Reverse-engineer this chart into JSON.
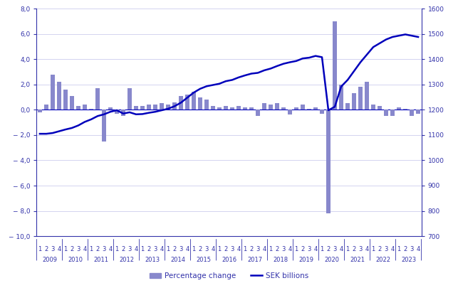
{
  "bar_color": "#8888cc",
  "line_color": "#0000bb",
  "grid_color": "#ccccee",
  "axis_color": "#3333aa",
  "background_color": "#ffffff",
  "left_ylim": [
    -10,
    8
  ],
  "right_ylim": [
    700,
    1600
  ],
  "left_yticks": [
    -10,
    -8,
    -6,
    -4,
    -2,
    0,
    2,
    4,
    6,
    8
  ],
  "right_yticks": [
    700,
    800,
    900,
    1000,
    1100,
    1200,
    1300,
    1400,
    1500,
    1600
  ],
  "years": [
    2009,
    2010,
    2011,
    2012,
    2013,
    2014,
    2015,
    2016,
    2017,
    2018,
    2019,
    2020,
    2021,
    2022,
    2023
  ],
  "pct_change": [
    -0.2,
    0.4,
    2.8,
    2.2,
    1.6,
    1.1,
    0.3,
    0.4,
    0.1,
    1.7,
    -2.5,
    0.2,
    -0.3,
    -0.5,
    1.7,
    0.3,
    0.3,
    0.4,
    0.4,
    0.5,
    0.4,
    0.6,
    1.1,
    1.2,
    1.4,
    1.0,
    0.8,
    0.3,
    0.2,
    0.3,
    0.2,
    0.3,
    0.2,
    0.2,
    -0.5,
    0.5,
    0.4,
    0.5,
    0.2,
    -0.4,
    0.2,
    0.4,
    0.1,
    0.2,
    -0.3,
    -8.2,
    7.0,
    2.0,
    0.5,
    1.3,
    1.8,
    2.2,
    0.4,
    0.3,
    -0.5,
    -0.5,
    0.2,
    0.1,
    -0.5,
    -0.3
  ],
  "sek_levels": [
    1105,
    1105,
    1108,
    1115,
    1122,
    1128,
    1138,
    1152,
    1162,
    1175,
    1182,
    1192,
    1198,
    1185,
    1190,
    1182,
    1183,
    1188,
    1192,
    1198,
    1204,
    1214,
    1228,
    1248,
    1268,
    1283,
    1293,
    1298,
    1303,
    1313,
    1318,
    1328,
    1336,
    1343,
    1346,
    1356,
    1363,
    1373,
    1382,
    1388,
    1393,
    1403,
    1406,
    1413,
    1408,
    1198,
    1212,
    1292,
    1318,
    1353,
    1388,
    1418,
    1448,
    1463,
    1478,
    1488,
    1493,
    1498,
    1493,
    1488
  ],
  "legend_bar_label": "Percentage change",
  "legend_line_label": "SEK billions"
}
